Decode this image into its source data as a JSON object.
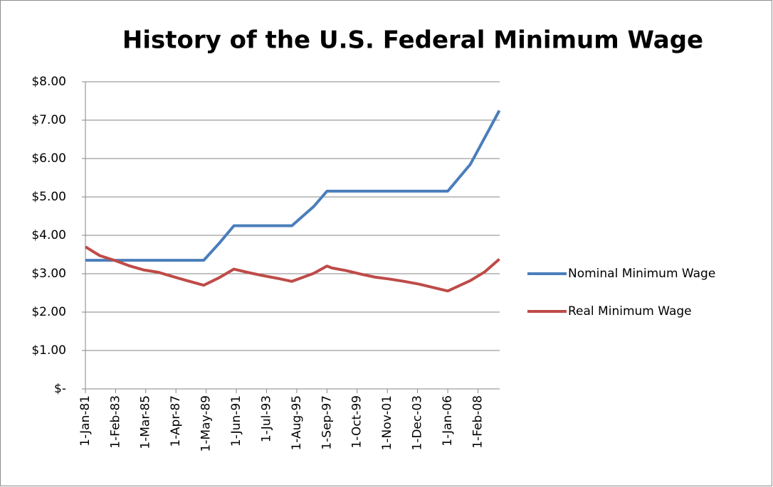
{
  "chart_data": {
    "type": "line",
    "title": "History of the U.S. Federal Minimum Wage",
    "x": [
      "1981-01-01",
      "1982-01-01",
      "1983-01-01",
      "1984-01-01",
      "1985-01-01",
      "1986-01-01",
      "1987-01-01",
      "1988-01-01",
      "1989-03-01",
      "1990-04-01",
      "1991-04-01",
      "1992-04-01",
      "1993-04-01",
      "1994-04-01",
      "1995-04-01",
      "1996-10-01",
      "1997-09-01",
      "1998-01-01",
      "1999-01-01",
      "2000-01-01",
      "2001-01-01",
      "2002-01-01",
      "2003-01-01",
      "2004-01-01",
      "2005-01-01",
      "2006-01-01",
      "2007-07-24",
      "2008-07-24",
      "2009-07-24"
    ],
    "series": [
      {
        "name": "Nominal Minimum Wage",
        "color": "#4a7ebb",
        "values": [
          3.35,
          3.35,
          3.35,
          3.35,
          3.35,
          3.35,
          3.35,
          3.35,
          3.35,
          3.8,
          4.25,
          4.25,
          4.25,
          4.25,
          4.25,
          4.75,
          5.15,
          5.15,
          5.15,
          5.15,
          5.15,
          5.15,
          5.15,
          5.15,
          5.15,
          5.15,
          5.85,
          6.55,
          7.25
        ]
      },
      {
        "name": "Real Minimum Wage",
        "color": "#be4b48",
        "values": [
          3.7,
          3.47,
          3.35,
          3.21,
          3.1,
          3.04,
          2.93,
          2.82,
          2.7,
          2.9,
          3.12,
          3.03,
          2.95,
          2.88,
          2.8,
          3.01,
          3.2,
          3.15,
          3.08,
          2.99,
          2.91,
          2.86,
          2.8,
          2.73,
          2.64,
          2.55,
          2.82,
          3.05,
          3.38
        ]
      }
    ],
    "xlim": [
      "1981-01-01",
      "2009-08-01"
    ],
    "xticks": [
      {
        "value": "1981-01-01",
        "label": "1-Jan-81"
      },
      {
        "value": "1983-02-01",
        "label": "1-Feb-83"
      },
      {
        "value": "1985-03-01",
        "label": "1-Mar-85"
      },
      {
        "value": "1987-04-01",
        "label": "1-Apr-87"
      },
      {
        "value": "1989-05-01",
        "label": "1-May-89"
      },
      {
        "value": "1991-06-01",
        "label": "1-Jun-91"
      },
      {
        "value": "1993-07-01",
        "label": "1-Jul-93"
      },
      {
        "value": "1995-08-01",
        "label": "1-Aug-95"
      },
      {
        "value": "1997-09-01",
        "label": "1-Sep-97"
      },
      {
        "value": "1999-10-01",
        "label": "1-Oct-99"
      },
      {
        "value": "2001-11-01",
        "label": "1-Nov-01"
      },
      {
        "value": "2003-12-01",
        "label": "1-Dec-03"
      },
      {
        "value": "2006-01-01",
        "label": "1-Jan-06"
      },
      {
        "value": "2008-02-01",
        "label": "1-Feb-08"
      }
    ],
    "ylim": [
      0,
      8
    ],
    "yticks": [
      {
        "value": 0,
        "label": "$-"
      },
      {
        "value": 1,
        "label": "$1.00"
      },
      {
        "value": 2,
        "label": "$2.00"
      },
      {
        "value": 3,
        "label": "$3.00"
      },
      {
        "value": 4,
        "label": "$4.00"
      },
      {
        "value": 5,
        "label": "$5.00"
      },
      {
        "value": 6,
        "label": "$6.00"
      },
      {
        "value": 7,
        "label": "$7.00"
      },
      {
        "value": 8,
        "label": "$8.00"
      }
    ],
    "grid": true,
    "legend": "right"
  }
}
